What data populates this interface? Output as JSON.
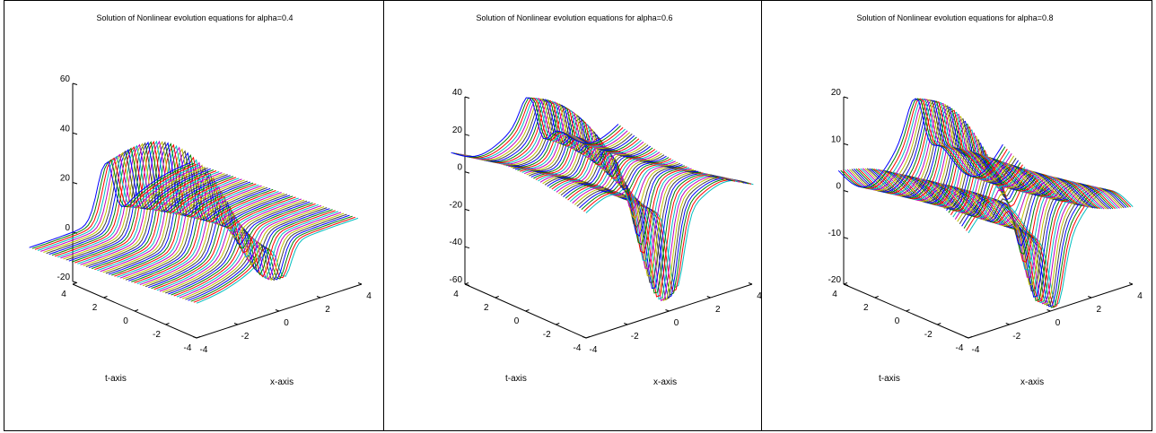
{
  "colors": [
    "#0000ff",
    "#008000",
    "#ff0000",
    "#00bfbf",
    "#bf00bf",
    "#bfbf00",
    "#404040"
  ],
  "chart_data": [
    {
      "type": "surface-3d",
      "title": "Solution of Nonlinear evolution equations for alpha=0.4",
      "alpha": 0.4,
      "xlabel": "x-axis",
      "ylabel": "t-axis",
      "zlabel": "",
      "xlim": [
        -4,
        4
      ],
      "ylim": [
        -4,
        4
      ],
      "zlim": [
        -20,
        60
      ],
      "x_ticks": [
        -4,
        -2,
        0,
        2,
        4
      ],
      "t_ticks": [
        -4,
        -2,
        0,
        2,
        4
      ],
      "z_ticks": [
        -20,
        0,
        20,
        40,
        60
      ],
      "z_tick_labels": [
        "-20",
        "0",
        "20",
        "40",
        "60"
      ],
      "x_tick_labels": [
        "-4",
        "-2",
        "0",
        "2",
        "4"
      ],
      "t_tick_labels": [
        "-4",
        "-2",
        "0",
        "2",
        "4"
      ]
    },
    {
      "type": "surface-3d",
      "title": "Solution of Nonlinear evolution equations for alpha=0.6",
      "alpha": 0.6,
      "xlabel": "x-axis",
      "ylabel": "t-axis",
      "zlabel": "",
      "xlim": [
        -4,
        4
      ],
      "ylim": [
        -4,
        4
      ],
      "zlim": [
        -60,
        40
      ],
      "x_ticks": [
        -4,
        -2,
        0,
        2,
        4
      ],
      "t_ticks": [
        -4,
        -2,
        0,
        2,
        4
      ],
      "z_ticks": [
        -60,
        -40,
        -20,
        0,
        20,
        40
      ],
      "z_tick_labels": [
        "-60",
        "-40",
        "-20",
        "0",
        "20",
        "40"
      ],
      "x_tick_labels": [
        "-4",
        "-2",
        "0",
        "2",
        "4"
      ],
      "t_tick_labels": [
        "-4",
        "-2",
        "0",
        "2",
        "4"
      ]
    },
    {
      "type": "surface-3d",
      "title": "Solution of Nonlinear evolution equations for alpha=0.8",
      "alpha": 0.8,
      "xlabel": "x-axis",
      "ylabel": "t-axis",
      "zlabel": "",
      "xlim": [
        -4,
        4
      ],
      "ylim": [
        -4,
        4
      ],
      "zlim": [
        -20,
        20
      ],
      "x_ticks": [
        -4,
        -2,
        0,
        2,
        4
      ],
      "t_ticks": [
        -4,
        -2,
        0,
        2,
        4
      ],
      "z_ticks": [
        -20,
        -10,
        0,
        10,
        20
      ],
      "z_tick_labels": [
        "-20",
        "-10",
        "0",
        "10",
        "20"
      ],
      "x_tick_labels": [
        "-4",
        "-2",
        "0",
        "2",
        "4"
      ],
      "t_tick_labels": [
        "-4",
        "-2",
        "0",
        "2",
        "4"
      ]
    }
  ]
}
